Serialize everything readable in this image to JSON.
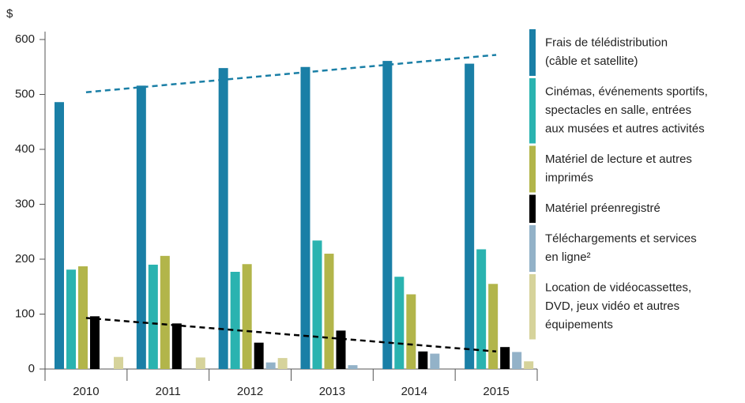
{
  "chart_data": {
    "type": "bar",
    "y_label": "$",
    "categories": [
      "2010",
      "2011",
      "2012",
      "2013",
      "2014",
      "2015"
    ],
    "ylim": [
      0,
      600
    ],
    "yticks": [
      0,
      100,
      200,
      300,
      400,
      500,
      600
    ],
    "series": [
      {
        "name": [
          "Frais de télédistribution",
          "(câble et satellite)"
        ],
        "color": "#1a7fa6",
        "values": [
          486,
          516,
          548,
          550,
          561,
          556
        ]
      },
      {
        "name": [
          "Cinémas, événements sportifs,",
          "spectacles en salle, entrées",
          "aux musées et autres activités"
        ],
        "color": "#2ab3b0",
        "values": [
          181,
          190,
          177,
          234,
          168,
          218
        ]
      },
      {
        "name": [
          "Matériel de lecture et autres",
          "imprimés"
        ],
        "color": "#b2b54a",
        "values": [
          187,
          206,
          191,
          210,
          136,
          155
        ]
      },
      {
        "name": [
          "Matériel préenregistré"
        ],
        "color": "#000000",
        "values": [
          96,
          83,
          48,
          70,
          32,
          40
        ]
      },
      {
        "name": [
          "Téléchargements et services",
          "en ligne²"
        ],
        "color": "#93b2c8",
        "values": [
          null,
          null,
          12,
          7,
          28,
          31
        ]
      },
      {
        "name": [
          "Location de vidéocassettes,",
          "DVD, jeux vidéo et autres",
          "équipements"
        ],
        "color": "#d6d39b",
        "values": [
          22,
          21,
          20,
          null,
          null,
          14
        ]
      }
    ],
    "trend_lines": [
      {
        "color": "#1a7fa6",
        "values": [
          504,
          572
        ]
      },
      {
        "color": "#000000",
        "values": [
          93,
          32
        ]
      }
    ]
  }
}
